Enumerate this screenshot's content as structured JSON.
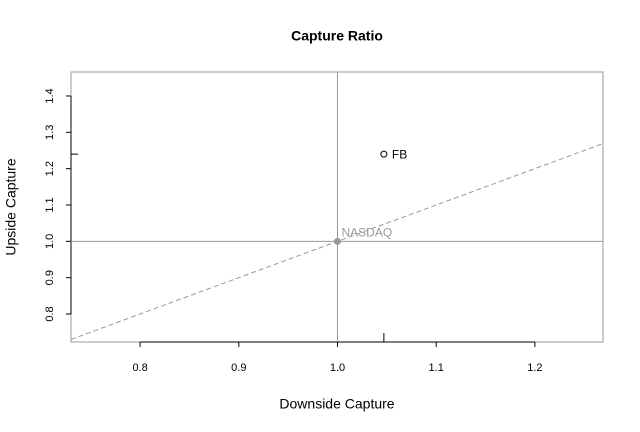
{
  "chart_data": {
    "type": "scatter",
    "title": "Capture Ratio",
    "x_label": "Downside Capture",
    "y_label": "Upside Capture",
    "series": [
      {
        "name": "FB",
        "x": [
          1.047
        ],
        "values": [
          1.24
        ],
        "color": "#000000",
        "filled": false
      },
      {
        "name": "NASDAQ",
        "x": [
          1
        ],
        "values": [
          1
        ],
        "color": "#999999",
        "filled": true
      }
    ],
    "xlim": [
      0.73,
      1.269
    ],
    "ylim": [
      0.723,
      1.466
    ],
    "xticks": [
      0.8,
      0.9,
      {
        "value": 1,
        "label": "1.0"
      },
      1.1,
      1.2
    ],
    "yticks": [
      0.8,
      0.9,
      {
        "value": 1,
        "label": "1.0"
      },
      1.1,
      1.2,
      1.3,
      1.4
    ],
    "reference_lines": {
      "h": 1,
      "v": 1
    },
    "diagonal": true
  }
}
